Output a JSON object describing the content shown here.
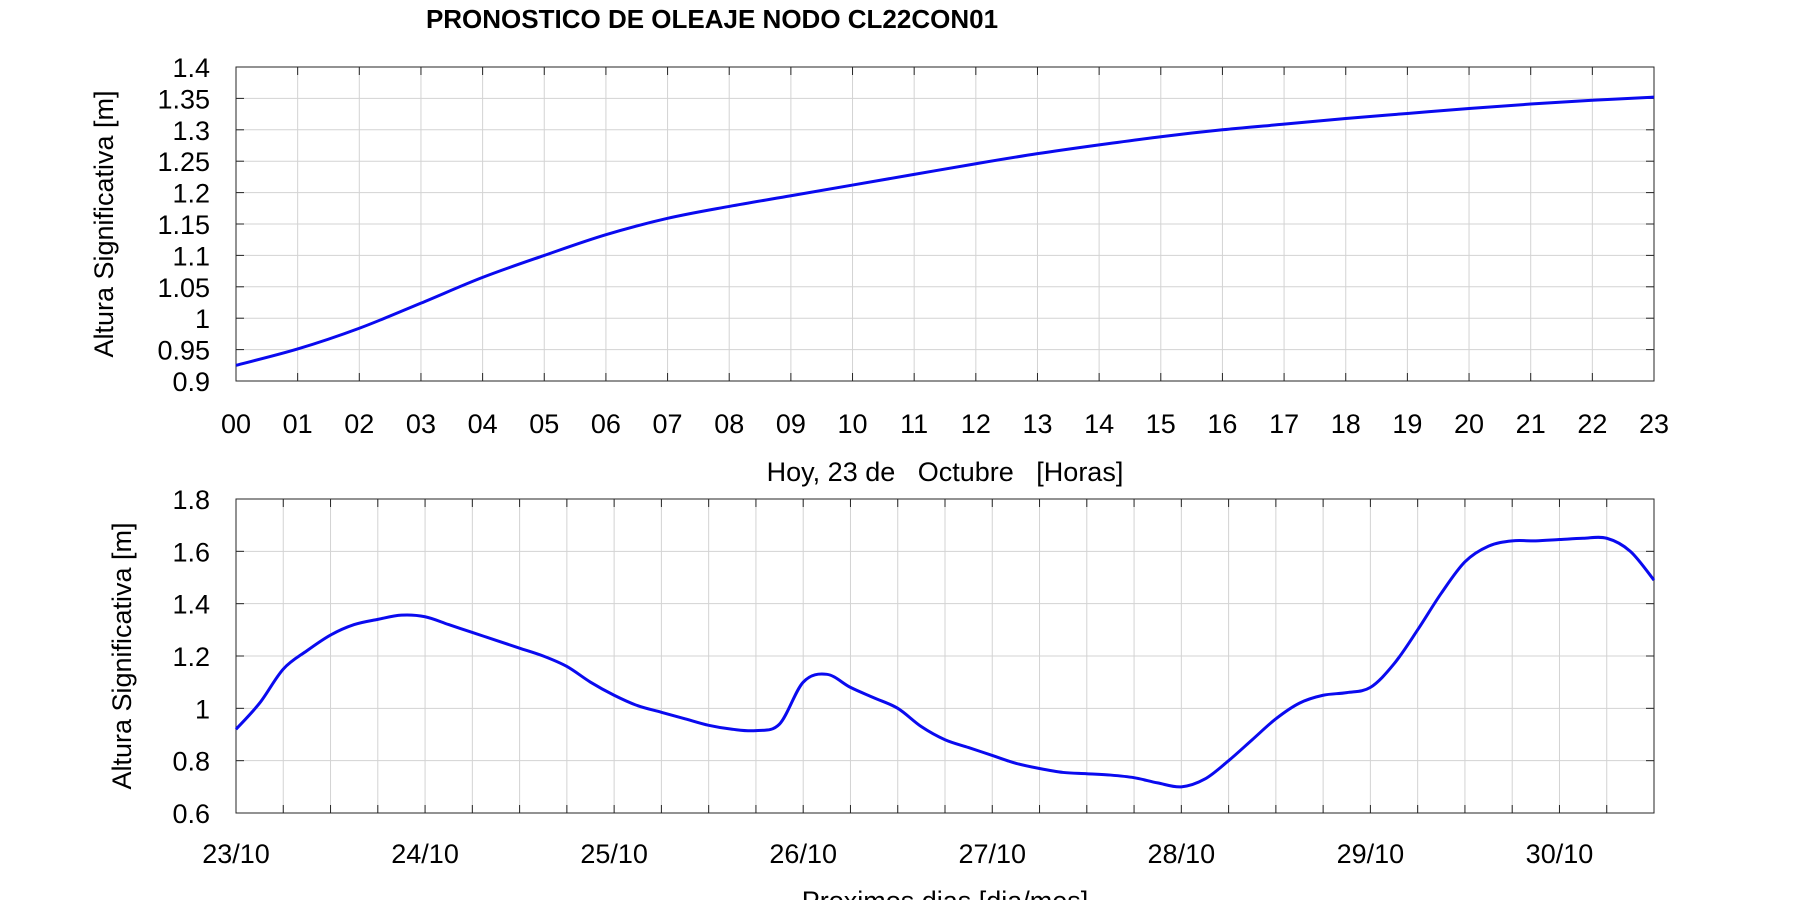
{
  "title": "PRONOSTICO DE OLEAJE NODO CL22CON01",
  "colors": {
    "series": "#0a0aef",
    "grid": "#d3d3d3",
    "axis": "#262626"
  },
  "chart_data": [
    {
      "type": "line",
      "xlabel": "Hoy, 23 de   Octubre   [Horas]",
      "ylabel": "Altura Significativa [m]",
      "xlim": [
        0,
        23
      ],
      "ylim": [
        0.9,
        1.4
      ],
      "grid": true,
      "xtick_values": [
        0,
        1,
        2,
        3,
        4,
        5,
        6,
        7,
        8,
        9,
        10,
        11,
        12,
        13,
        14,
        15,
        16,
        17,
        18,
        19,
        20,
        21,
        22,
        23
      ],
      "xtick_labels": [
        "00",
        "01",
        "02",
        "03",
        "04",
        "05",
        "06",
        "07",
        "08",
        "09",
        "10",
        "11",
        "12",
        "13",
        "14",
        "15",
        "16",
        "17",
        "18",
        "19",
        "20",
        "21",
        "22",
        "23"
      ],
      "ytick_values": [
        0.9,
        0.95,
        1.0,
        1.05,
        1.1,
        1.15,
        1.2,
        1.25,
        1.3,
        1.35,
        1.4
      ],
      "ytick_labels": [
        "0.9",
        "0.95",
        "1",
        "1.05",
        "1.1",
        "1.15",
        "1.2",
        "1.25",
        "1.3",
        "1.35",
        "1.4"
      ],
      "x": [
        0,
        1,
        2,
        3,
        4,
        5,
        6,
        7,
        8,
        9,
        10,
        11,
        12,
        13,
        14,
        15,
        16,
        17,
        18,
        19,
        20,
        21,
        22,
        23
      ],
      "y": [
        0.925,
        0.951,
        0.984,
        1.024,
        1.065,
        1.1,
        1.133,
        1.159,
        1.178,
        1.195,
        1.212,
        1.229,
        1.246,
        1.262,
        1.276,
        1.289,
        1.3,
        1.309,
        1.318,
        1.326,
        1.334,
        1.341,
        1.347,
        1.352
      ]
    },
    {
      "type": "line",
      "xlabel": "Proximos dias [dia/mes]",
      "ylabel": "Altura Significativa [m]",
      "xlim": [
        0,
        7.5
      ],
      "ylim": [
        0.6,
        1.8
      ],
      "grid": true,
      "xtick_values": [
        0,
        1,
        2,
        3,
        4,
        5,
        6,
        7
      ],
      "xtick_labels": [
        "23/10",
        "24/10",
        "25/10",
        "26/10",
        "27/10",
        "28/10",
        "29/10",
        "30/10"
      ],
      "ytick_values": [
        0.6,
        0.8,
        1.0,
        1.2,
        1.4,
        1.6,
        1.8
      ],
      "ytick_labels": [
        "0.6",
        "0.8",
        "1",
        "1.2",
        "1.4",
        "1.6",
        "1.8"
      ],
      "x": [
        0,
        0.125,
        0.25,
        0.375,
        0.5,
        0.625,
        0.75,
        0.875,
        1.0,
        1.125,
        1.25,
        1.375,
        1.5,
        1.625,
        1.75,
        1.875,
        2.0,
        2.125,
        2.25,
        2.375,
        2.5,
        2.625,
        2.75,
        2.875,
        3.0,
        3.125,
        3.25,
        3.375,
        3.5,
        3.625,
        3.75,
        3.875,
        4.0,
        4.125,
        4.25,
        4.375,
        4.5,
        4.625,
        4.75,
        4.875,
        5.0,
        5.125,
        5.25,
        5.375,
        5.5,
        5.625,
        5.75,
        5.875,
        6.0,
        6.125,
        6.25,
        6.375,
        6.5,
        6.625,
        6.75,
        6.875,
        7.0,
        7.125,
        7.25,
        7.375,
        7.5
      ],
      "y": [
        0.92,
        1.02,
        1.15,
        1.22,
        1.28,
        1.32,
        1.34,
        1.356,
        1.35,
        1.32,
        1.29,
        1.26,
        1.23,
        1.2,
        1.16,
        1.1,
        1.05,
        1.01,
        0.985,
        0.96,
        0.935,
        0.92,
        0.915,
        0.94,
        1.1,
        1.13,
        1.08,
        1.04,
        1.0,
        0.93,
        0.88,
        0.85,
        0.82,
        0.79,
        0.77,
        0.755,
        0.75,
        0.745,
        0.735,
        0.715,
        0.7,
        0.73,
        0.8,
        0.88,
        0.96,
        1.02,
        1.05,
        1.06,
        1.08,
        1.17,
        1.3,
        1.44,
        1.56,
        1.62,
        1.64,
        1.64,
        1.645,
        1.65,
        1.65,
        1.6,
        1.49
      ]
    }
  ]
}
